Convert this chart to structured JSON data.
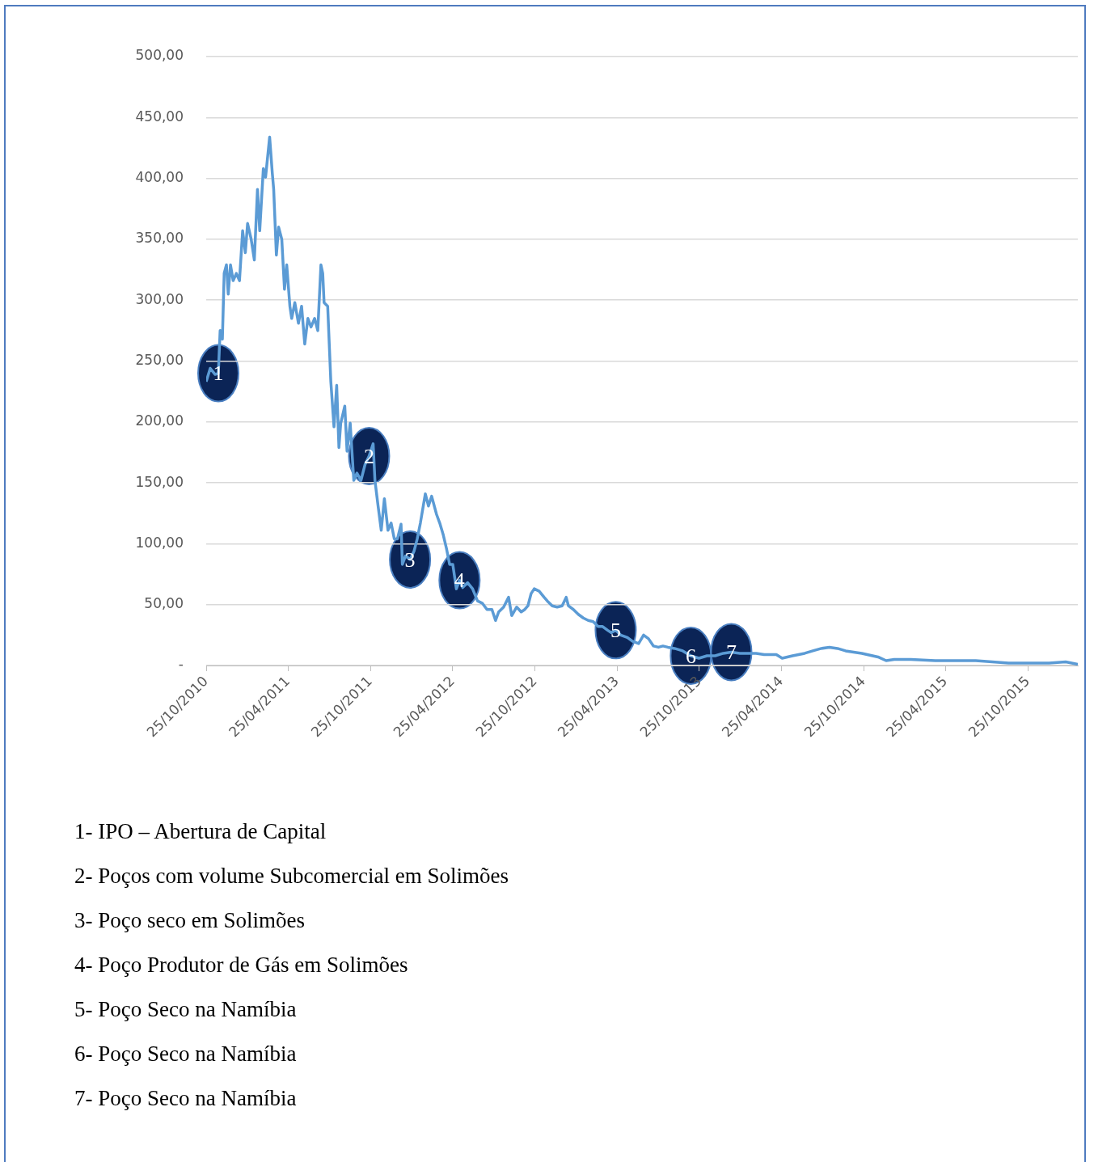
{
  "chart_data": {
    "type": "line",
    "x": [
      "2010-10-25",
      "2010-11-03",
      "2010-11-14",
      "2010-11-21",
      "2010-11-25",
      "2010-11-30",
      "2010-12-04",
      "2010-12-09",
      "2010-12-13",
      "2010-12-18",
      "2010-12-24",
      "2010-12-31",
      "2011-01-07",
      "2011-01-14",
      "2011-01-20",
      "2011-01-25",
      "2011-02-02",
      "2011-02-09",
      "2011-02-16",
      "2011-02-21",
      "2011-03-01",
      "2011-03-06",
      "2011-03-15",
      "2011-03-21",
      "2011-03-24",
      "2011-03-30",
      "2011-04-04",
      "2011-04-11",
      "2011-04-17",
      "2011-04-22",
      "2011-04-29",
      "2011-05-03",
      "2011-05-10",
      "2011-05-18",
      "2011-05-25",
      "2011-06-01",
      "2011-06-08",
      "2011-06-15",
      "2011-06-23",
      "2011-06-30",
      "2011-07-07",
      "2011-07-11",
      "2011-07-14",
      "2011-07-22",
      "2011-07-29",
      "2011-08-05",
      "2011-08-11",
      "2011-08-16",
      "2011-08-20",
      "2011-08-29",
      "2011-09-03",
      "2011-09-10",
      "2011-09-18",
      "2011-09-25",
      "2011-10-04",
      "2011-10-13",
      "2011-10-22",
      "2011-10-31",
      "2011-11-04",
      "2011-11-11",
      "2011-11-18",
      "2011-11-25",
      "2011-12-03",
      "2011-12-10",
      "2011-12-17",
      "2011-12-24",
      "2012-01-01",
      "2012-01-04",
      "2012-01-11",
      "2012-01-21",
      "2012-01-30",
      "2012-02-06",
      "2012-02-13",
      "2012-02-24",
      "2012-03-02",
      "2012-03-09",
      "2012-03-20",
      "2012-03-27",
      "2012-04-04",
      "2012-04-11",
      "2012-04-18",
      "2012-04-25",
      "2012-05-03",
      "2012-05-10",
      "2012-05-17",
      "2012-05-28",
      "2012-06-08",
      "2012-06-19",
      "2012-06-30",
      "2012-07-10",
      "2012-07-21",
      "2012-07-29",
      "2012-08-05",
      "2012-08-16",
      "2012-08-27",
      "2012-09-03",
      "2012-09-14",
      "2012-09-24",
      "2012-10-02",
      "2012-10-09",
      "2012-10-16",
      "2012-10-23",
      "2012-11-03",
      "2012-11-14",
      "2012-11-21",
      "2012-12-02",
      "2012-12-13",
      "2012-12-24",
      "2013-01-02",
      "2013-01-07",
      "2013-01-18",
      "2013-01-29",
      "2013-02-09",
      "2013-02-20",
      "2013-03-03",
      "2013-03-14",
      "2013-03-24",
      "2013-04-04",
      "2013-04-12",
      "2013-04-22",
      "2013-05-03",
      "2013-05-18",
      "2013-05-29",
      "2013-06-12",
      "2013-06-23",
      "2013-07-04",
      "2013-07-15",
      "2013-07-26",
      "2013-08-05",
      "2013-08-16",
      "2013-08-31",
      "2013-09-18",
      "2013-10-06",
      "2013-10-24",
      "2013-11-11",
      "2013-11-29",
      "2013-12-17",
      "2014-01-04",
      "2014-01-23",
      "2014-02-10",
      "2014-02-28",
      "2014-03-18",
      "2014-04-14",
      "2014-04-27",
      "2014-05-20",
      "2014-06-16",
      "2014-07-04",
      "2014-07-23",
      "2014-08-10",
      "2014-08-28",
      "2014-09-15",
      "2014-10-21",
      "2014-11-26",
      "2014-12-14",
      "2015-01-01",
      "2015-02-07",
      "2015-04-02",
      "2015-05-26",
      "2015-07-01",
      "2015-08-07",
      "2015-09-12",
      "2015-10-18",
      "2015-12-11",
      "2016-01-17",
      "2016-02-13"
    ],
    "series": [
      {
        "color": "#5b9bd5",
        "values": [
          233,
          244,
          239,
          240,
          275,
          268,
          322,
          329,
          305,
          329,
          316,
          322,
          316,
          357,
          339,
          363,
          350,
          333,
          391,
          357,
          408,
          401,
          434,
          404,
          391,
          337,
          360,
          350,
          309,
          329,
          295,
          285,
          298,
          281,
          295,
          264,
          285,
          278,
          285,
          275,
          329,
          322,
          298,
          295,
          233,
          196,
          230,
          179,
          199,
          213,
          176,
          199,
          152,
          158,
          152,
          165,
          172,
          182,
          152,
          131,
          111,
          137,
          111,
          117,
          104,
          104,
          116,
          83,
          90,
          87,
          94,
          104,
          117,
          141,
          131,
          139,
          124,
          117,
          107,
          96,
          83,
          83,
          63,
          70,
          64,
          68,
          63,
          53,
          51,
          46,
          46,
          37,
          44,
          48,
          56,
          41,
          48,
          44,
          46,
          49,
          59,
          63,
          61,
          56,
          53,
          49,
          48,
          49,
          56,
          49,
          46,
          42,
          39,
          37,
          36,
          32,
          32,
          29,
          27,
          29,
          25,
          23,
          20,
          18,
          25,
          22,
          16,
          15,
          16,
          15,
          14,
          12,
          8,
          6,
          8,
          8,
          10,
          11,
          10,
          10,
          10,
          9,
          9,
          6,
          8,
          10,
          12,
          14,
          15,
          14,
          12,
          10,
          7,
          4,
          5,
          5,
          4,
          4,
          4,
          3,
          2,
          2,
          2,
          3,
          1
        ]
      }
    ],
    "xlim": [
      "2010-10-25",
      "2016-02-13"
    ],
    "xticks": [
      {
        "value": "2010-10-25",
        "label": "25/10/2010"
      },
      {
        "value": "2011-04-25",
        "label": "25/04/2011"
      },
      {
        "value": "2011-10-25",
        "label": "25/10/2011"
      },
      {
        "value": "2012-04-25",
        "label": "25/04/2012"
      },
      {
        "value": "2012-10-25",
        "label": "25/10/2012"
      },
      {
        "value": "2013-04-25",
        "label": "25/04/2013"
      },
      {
        "value": "2013-10-25",
        "label": "25/10/2013"
      },
      {
        "value": "2014-04-25",
        "label": "25/04/2014"
      },
      {
        "value": "2014-10-25",
        "label": "25/10/2014"
      },
      {
        "value": "2015-04-25",
        "label": "25/04/2015"
      },
      {
        "value": "2015-10-25",
        "label": "25/10/2015"
      }
    ],
    "ylim": [
      0,
      500
    ],
    "yticks": [
      {
        "value": 0,
        "label": "-"
      },
      {
        "value": 50,
        "label": "50,00"
      },
      {
        "value": 100,
        "label": "100,00"
      },
      {
        "value": 150,
        "label": "150,00"
      },
      {
        "value": 200,
        "label": "200,00"
      },
      {
        "value": 250,
        "label": "250,00"
      },
      {
        "value": 300,
        "label": "300,00"
      },
      {
        "value": 350,
        "label": "350,00"
      },
      {
        "value": 400,
        "label": "400,00"
      },
      {
        "value": 450,
        "label": "450,00"
      },
      {
        "value": 500,
        "label": "500,00"
      }
    ],
    "grid": "y",
    "annotations": [
      {
        "text": "1",
        "x": "2010-11-21",
        "y": 240
      },
      {
        "text": "2",
        "x": "2011-10-22",
        "y": 172
      },
      {
        "text": "3",
        "x": "2012-01-21",
        "y": 87
      },
      {
        "text": "4",
        "x": "2012-05-10",
        "y": 70
      },
      {
        "text": "5",
        "x": "2013-04-22",
        "y": 29
      },
      {
        "text": "6",
        "x": "2013-10-06",
        "y": 8
      },
      {
        "text": "7",
        "x": "2014-01-04",
        "y": 11
      },
      "1- IPO – Abertura de Capital",
      "2- Poços com volume Subcomercial em Solimões",
      "3- Poço seco em Solimões",
      "4- Poço Produtor de Gás em Solimões",
      "5- Poço Seco na Namíbia",
      "6- Poço Seco na Namíbia",
      "7- Poço Seco na Namíbia"
    ]
  }
}
